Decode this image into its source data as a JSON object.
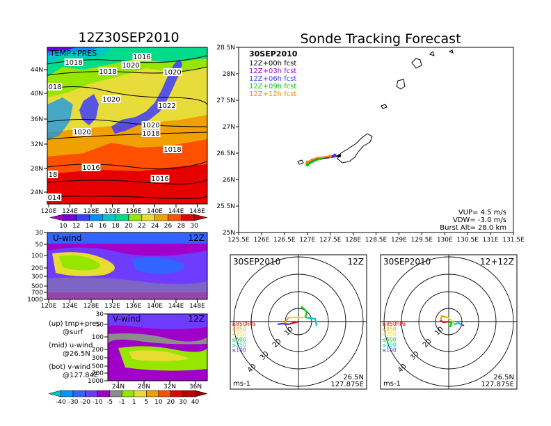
{
  "left_title": "12Z30SEP2010",
  "right_title": "Sonde Tracking Forecast",
  "temp_panel": {
    "label": "TEMP+PRES",
    "lat_ticks": [
      "44N",
      "40N",
      "36N",
      "32N",
      "28N",
      "24N"
    ],
    "lon_ticks": [
      "120E",
      "124E",
      "128E",
      "132E",
      "136E",
      "140E",
      "144E",
      "148E"
    ],
    "isobar_labels": [
      "1016",
      "1018",
      "1020",
      "1018",
      "1020",
      "018",
      "1020",
      "1022",
      "1020",
      "1018",
      "1020",
      "1018",
      "1016",
      "18",
      "1016",
      "014"
    ],
    "colorbar_labels": [
      "10",
      "12",
      "14",
      "16",
      "18",
      "20",
      "22",
      "24",
      "26",
      "28",
      "30"
    ],
    "colorbar_colors": [
      "#a000c8",
      "#6e00dc",
      "#3c3cff",
      "#0090ff",
      "#00c8c8",
      "#00dc8c",
      "#96e600",
      "#e6dc32",
      "#f0a000",
      "#ff5000",
      "#e60000",
      "#c00000"
    ]
  },
  "u_panel": {
    "label": "U-wind",
    "time": "12Z",
    "y_ticks": [
      "30",
      "50",
      "100",
      "200",
      "300",
      "500",
      "700",
      "1000"
    ],
    "x_ticks": [
      "120E",
      "124E",
      "128E",
      "132E",
      "136E",
      "140E",
      "144E",
      "148E"
    ]
  },
  "v_panel": {
    "label": "V-wind",
    "time": "12Z",
    "y_ticks": [
      "30",
      "50",
      "100",
      "200",
      "300",
      "500",
      "700",
      "1000"
    ],
    "x_ticks": [
      "24N",
      "28N",
      "32N",
      "36N"
    ]
  },
  "legend_notes": [
    {
      "line1": "(up) tmp+pres",
      "line2": "@surf"
    },
    {
      "line1": "(mid) u-wind",
      "line2": "@26.5N"
    },
    {
      "line1": "(bot) v-wind",
      "line2": "@127.84E"
    }
  ],
  "wind_colorbar": {
    "labels": [
      "-40",
      "-30",
      "-20",
      "-10",
      "-5",
      "-1",
      "1",
      "5",
      "10",
      "20",
      "30",
      "40"
    ],
    "colors": [
      "#00c8c8",
      "#0096ff",
      "#3264ff",
      "#6e3cff",
      "#a000c8",
      "#8c8c8c",
      "#96e600",
      "#e6dc32",
      "#f0a000",
      "#ff5000",
      "#e60000",
      "#c00000",
      "#a00000"
    ]
  },
  "track_panel": {
    "date": "30SEP2010",
    "forecasts": [
      {
        "label": "12Z+00h  fcst",
        "color": "#000000"
      },
      {
        "label": "12Z+03h  fcst",
        "color": "#a000c8"
      },
      {
        "label": "12Z+06h  fcst",
        "color": "#3c3cff"
      },
      {
        "label": "12Z+09h  fcst",
        "color": "#00c800"
      },
      {
        "label": "12Z+12h  fcst",
        "color": "#f08c00"
      }
    ],
    "lat_ticks": [
      "28.5N",
      "28N",
      "27.5N",
      "27N",
      "26.5N",
      "26N",
      "25.5N",
      "25N"
    ],
    "lon_ticks": [
      "125.5E",
      "126E",
      "126.5E",
      "127E",
      "127.5E",
      "128E",
      "128.5E",
      "129E",
      "129.5E",
      "130E",
      "130.5E",
      "131E",
      "131.5E"
    ],
    "vup": "VUP=  4.5  m/s",
    "vdw": "VDW=  -3.0  m/s",
    "burst": "Burst  Alt=  28.0  km"
  },
  "chart_data": {
    "type": "line",
    "title": "Sonde Tracking Forecast",
    "xlim": [
      125.5,
      131.5
    ],
    "ylim": [
      25.0,
      28.5
    ],
    "series": [
      {
        "name": "12Z+00h  fcst",
        "x": [
          127.0,
          127.1,
          127.3,
          127.5,
          127.7
        ],
        "y": [
          26.3,
          26.38,
          26.4,
          26.42,
          26.45
        ]
      },
      {
        "name": "12Z+03h  fcst",
        "x": [
          127.0,
          127.2,
          127.4,
          127.6
        ],
        "y": [
          26.32,
          26.4,
          26.43,
          26.46
        ]
      },
      {
        "name": "12Z+06h  fcst",
        "x": [
          127.0,
          127.2,
          127.4,
          127.6
        ],
        "y": [
          26.31,
          26.39,
          26.42,
          26.45
        ]
      },
      {
        "name": "12Z+09h  fcst",
        "x": [
          127.0,
          127.15,
          127.3
        ],
        "y": [
          26.28,
          26.35,
          26.4
        ]
      },
      {
        "name": "12Z+12h  fcst",
        "x": [
          127.0,
          127.2,
          127.5
        ],
        "y": [
          26.33,
          26.41,
          26.44
        ]
      }
    ]
  },
  "hodo_left": {
    "date": "30SEP2010",
    "time": "12Z",
    "rings": [
      "10",
      "20",
      "30",
      "40"
    ],
    "levels": [
      {
        "label": "≥850hPa",
        "color": "#e60000"
      },
      {
        "label": "≤850",
        "color": "#f0a000"
      },
      {
        "label": "≤700",
        "color": "#e6dc32"
      },
      {
        "label": "≤500",
        "color": "#00c800"
      },
      {
        "label": "≤250",
        "color": "#00c8c8"
      },
      {
        "label": "≤100",
        "color": "#3c3cff"
      }
    ],
    "unit": "ms-1",
    "lat": "26.5N",
    "lon": "127.875E"
  },
  "hodo_right": {
    "date": "30SEP2010",
    "time": "12+12Z",
    "rings": [
      "10",
      "20",
      "30",
      "40"
    ],
    "levels": [
      {
        "label": "≥850hPa",
        "color": "#e60000"
      },
      {
        "label": "≤850",
        "color": "#f0a000"
      },
      {
        "label": "≤700",
        "color": "#e6dc32"
      },
      {
        "label": "≤500",
        "color": "#00c800"
      },
      {
        "label": "≤250",
        "color": "#00c8c8"
      },
      {
        "label": "≤100",
        "color": "#3c3cff"
      }
    ],
    "unit": "ms-1",
    "lat": "26.5N",
    "lon": "127.875E"
  }
}
